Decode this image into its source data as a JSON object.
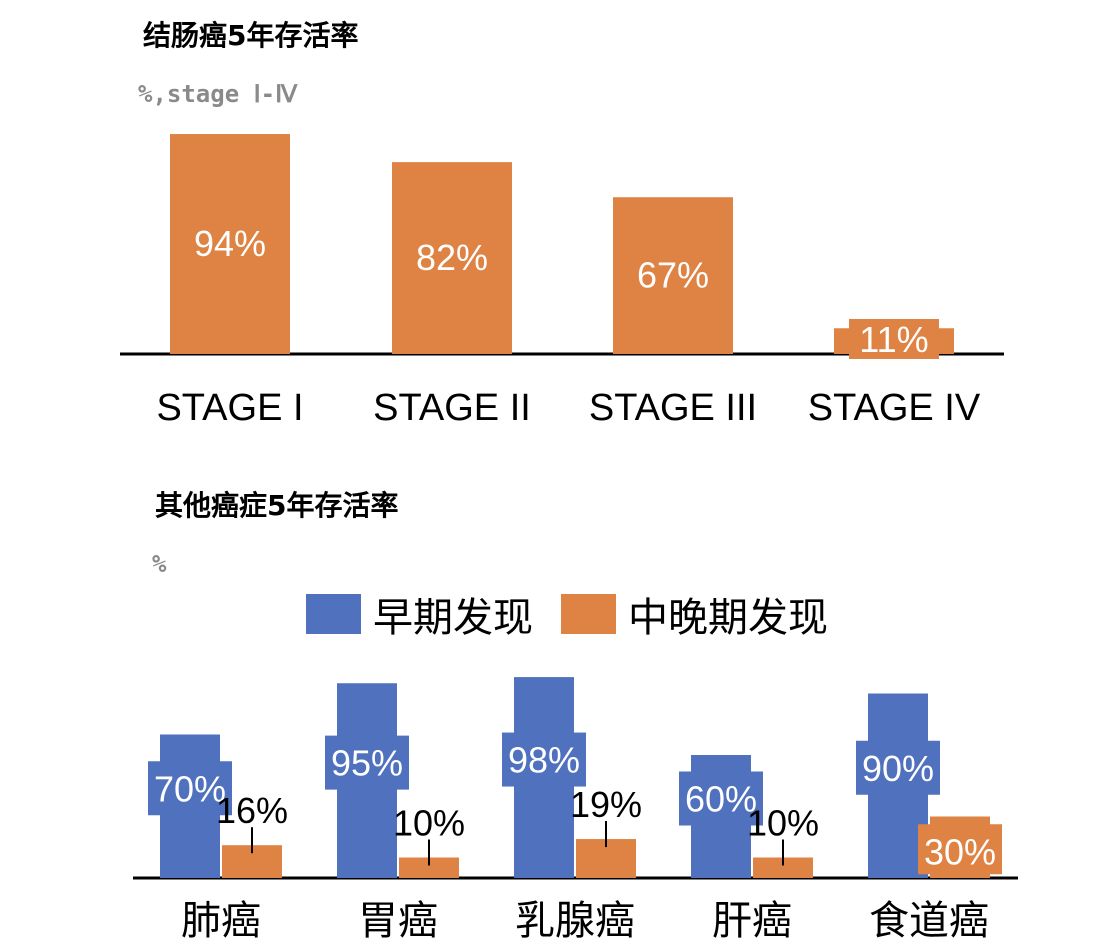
{
  "colors": {
    "early": "#4f71be",
    "late": "#de8344",
    "axis": "#000000",
    "label_on_bar": "#ffffff"
  },
  "chart_data": [
    {
      "type": "bar",
      "title": "结肠癌5年存活率",
      "unit_label": "%,stage Ⅰ-Ⅳ",
      "categories": [
        "STAGE I",
        "STAGE II",
        "STAGE III",
        "STAGE IV"
      ],
      "values": [
        94,
        82,
        67,
        11
      ],
      "value_labels": [
        "94%",
        "82%",
        "67%",
        "11%"
      ],
      "ylim": [
        0,
        100
      ],
      "grid": false
    },
    {
      "type": "bar",
      "title": "其他癌症5年存活率",
      "unit_label": "%",
      "categories": [
        "肺癌",
        "胃癌",
        "乳腺癌",
        "肝癌",
        "食道癌"
      ],
      "legend_position": "top",
      "series": [
        {
          "name": "早期发现",
          "values": [
            70,
            95,
            98,
            60,
            90
          ],
          "value_labels": [
            "70%",
            "95%",
            "98%",
            "60%",
            "90%"
          ]
        },
        {
          "name": "中晚期发现",
          "values": [
            16,
            10,
            19,
            10,
            30
          ],
          "value_labels": [
            "16%",
            "10%",
            "19%",
            "10%",
            "30%"
          ]
        }
      ],
      "ylim": [
        0,
        100
      ],
      "grid": false
    }
  ]
}
